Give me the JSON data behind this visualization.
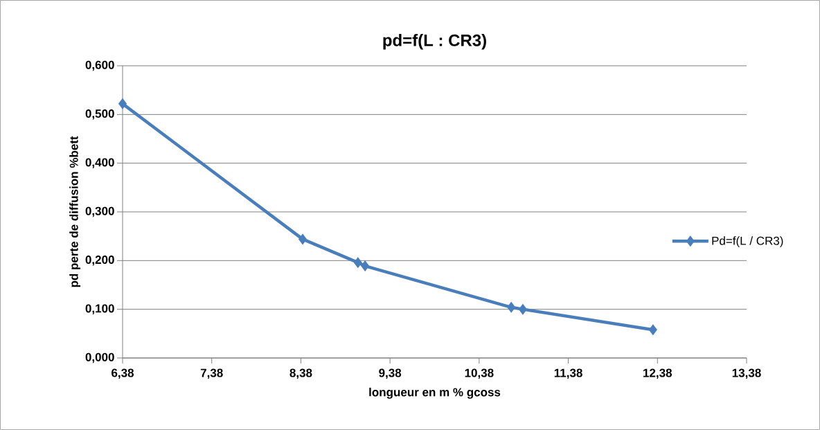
{
  "chart_data": {
    "type": "line",
    "title": "pd=f(L : CR3)",
    "xlabel": "longueur en m % gcoss",
    "ylabel": "pd perte de diffusion %bett",
    "x": [
      6.38,
      8.4,
      9.02,
      9.1,
      10.74,
      10.87,
      12.33
    ],
    "series": [
      {
        "name": "Pd=f(L / CR3)",
        "color": "#4a7ebb",
        "values": [
          0.522,
          0.244,
          0.196,
          0.189,
          0.104,
          0.1,
          0.058
        ]
      }
    ],
    "xlim": [
      6.38,
      13.38
    ],
    "xticks": [
      {
        "value": 6.38,
        "label": "6,38"
      },
      {
        "value": 7.38,
        "label": "7,38"
      },
      {
        "value": 8.38,
        "label": "8,38"
      },
      {
        "value": 9.38,
        "label": "9,38"
      },
      {
        "value": 10.38,
        "label": "10,38"
      },
      {
        "value": 11.38,
        "label": "11,38"
      },
      {
        "value": 12.38,
        "label": "12,38"
      },
      {
        "value": 13.38,
        "label": "13,38"
      }
    ],
    "ylim": [
      0,
      0.6
    ],
    "yticks": [
      {
        "value": 0,
        "label": "0,000"
      },
      {
        "value": 0.1,
        "label": "0,100"
      },
      {
        "value": 0.2,
        "label": "0,200"
      },
      {
        "value": 0.3,
        "label": "0,300"
      },
      {
        "value": 0.4,
        "label": "0,400"
      },
      {
        "value": 0.5,
        "label": "0,500"
      },
      {
        "value": 0.6,
        "label": "0,600"
      }
    ],
    "grid": "y",
    "legend": "right",
    "marker": "diamond",
    "line_style": "solid"
  }
}
